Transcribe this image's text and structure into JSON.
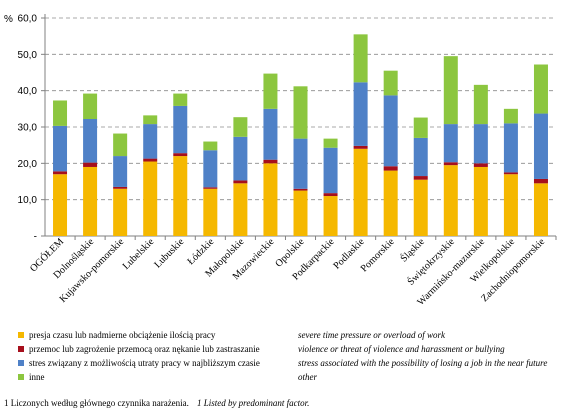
{
  "chart_data": {
    "type": "bar",
    "stacked": true,
    "title": "",
    "xlabel": "",
    "ylabel": "%",
    "ylim": [
      0,
      60
    ],
    "yticks": [
      "-",
      "10,0",
      "20,0",
      "30,0",
      "40,0",
      "50,0",
      "60,0"
    ],
    "grid": true,
    "legend_position": "bottom",
    "categories": [
      "OGÓŁEM",
      "Dolnośląskie",
      "Kujawsko-pomorskie",
      "Lubelskie",
      "Lubuskie",
      "Łódzkie",
      "Małopolskie",
      "Mazowieckie",
      "Opolskie",
      "Podkarpackie",
      "Podlaskie",
      "Pomorskie",
      "Śląskie",
      "Świętokrzyskie",
      "Warmińsko-mazurskie",
      "Wielkopolskie",
      "Zachodniopomorskie"
    ],
    "series": [
      {
        "name": "presja czasu lub nadmierne obciążenie ilością pracy",
        "name_en": "severe time pressure or overload of work",
        "color": "#f5b800",
        "values": [
          17.0,
          19.0,
          13.0,
          20.5,
          22.0,
          13.0,
          14.5,
          20.0,
          12.5,
          11.0,
          24.0,
          18.0,
          15.5,
          19.5,
          19.0,
          17.0,
          14.5
        ]
      },
      {
        "name": "przemoc lub zagrożenie przemocą oraz nękanie lub zastraszanie",
        "name_en": "violence or threat of violence and harassment or bullying",
        "color": "#a60f1c",
        "values": [
          0.8,
          1.2,
          0.5,
          0.8,
          0.8,
          0.4,
          0.8,
          1.0,
          0.5,
          0.8,
          0.8,
          1.2,
          1.0,
          0.8,
          1.0,
          0.5,
          1.2
        ]
      },
      {
        "name": "stres związany z możliwością utraty pracy w najbliższym czasie",
        "name_en": "stress associated with the possibility of losing a job in the near future",
        "color": "#4f81c7",
        "values": [
          12.5,
          12.0,
          8.5,
          9.5,
          13.0,
          10.2,
          12.0,
          14.0,
          13.8,
          12.5,
          17.5,
          19.5,
          10.5,
          10.5,
          10.8,
          13.5,
          18.0
        ]
      },
      {
        "name": "inne",
        "name_en": "other",
        "color": "#8cc63f",
        "values": [
          7.0,
          7.0,
          6.2,
          2.4,
          3.4,
          2.4,
          5.4,
          9.7,
          14.4,
          2.5,
          13.2,
          6.8,
          5.6,
          18.7,
          10.8,
          4.0,
          13.5
        ]
      }
    ]
  },
  "footnote": {
    "pl": "1 Liczonych według głównego czynnika narażenia.",
    "en": "1 Listed by predominant factor."
  }
}
